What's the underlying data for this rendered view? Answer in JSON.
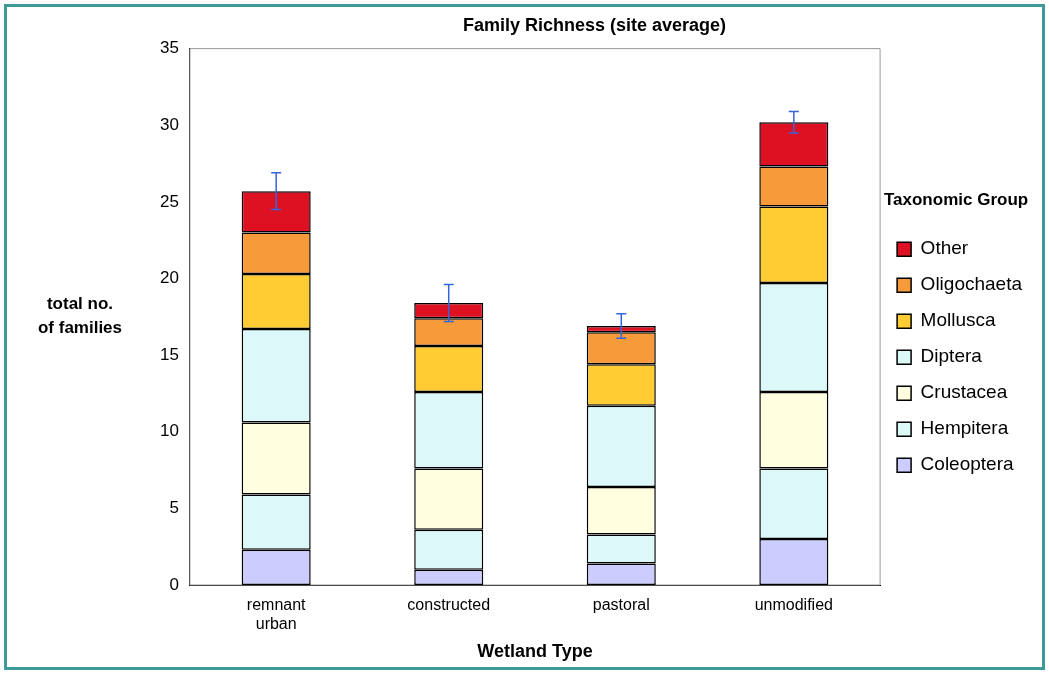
{
  "chart_data": {
    "type": "bar",
    "title": "Family Richness (site average)",
    "xlabel": "Wetland Type",
    "ylabel": "total no. of families",
    "legend_title": "Taxonomic Group",
    "categories": [
      "remnant urban",
      "constructed",
      "pastoral",
      "unmodified"
    ],
    "stacked": true,
    "ylim": [
      0,
      35
    ],
    "yticks": [
      0,
      5,
      10,
      15,
      20,
      25,
      30,
      35
    ],
    "grid": false,
    "legend": "right",
    "series": [
      {
        "name": "Coleoptera",
        "color": "#ccccff",
        "values": [
          2.3,
          1.0,
          1.4,
          3.0
        ]
      },
      {
        "name": "Hempitera",
        "color": "#ddf8f8",
        "values": [
          3.6,
          2.6,
          1.9,
          4.6
        ]
      },
      {
        "name": "Crustacea",
        "color": "#ffffe0",
        "values": [
          4.7,
          4.0,
          3.1,
          5.0
        ]
      },
      {
        "name": "Diptera",
        "color": "#ddf8f8",
        "values": [
          6.1,
          5.0,
          5.3,
          7.1
        ]
      },
      {
        "name": "Mollusca",
        "color": "#ffcc33",
        "values": [
          3.6,
          3.0,
          2.7,
          5.0
        ]
      },
      {
        "name": "Oligochaeta",
        "color": "#f79a3a",
        "values": [
          2.7,
          1.8,
          2.1,
          2.6
        ]
      },
      {
        "name": "Other",
        "color": "#dd1122",
        "values": [
          2.7,
          1.0,
          0.4,
          2.9
        ],
        "errors": [
          1.2,
          1.2,
          0.8,
          0.7
        ]
      }
    ]
  }
}
